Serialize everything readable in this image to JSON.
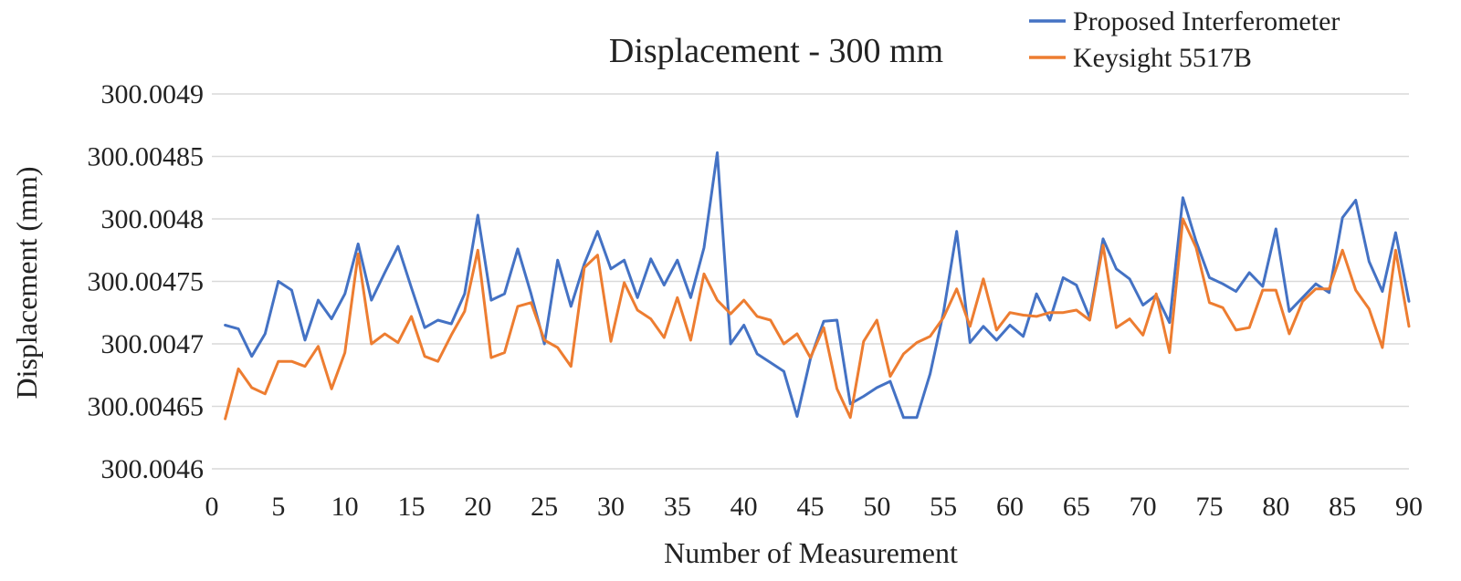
{
  "chart_data": {
    "type": "line",
    "title": "Displacement - 300 mm",
    "xlabel": "Number of Measurement",
    "ylabel": "Displacement (mm)",
    "xlim": [
      0,
      90
    ],
    "ylim": [
      300.0046,
      300.0049
    ],
    "x_ticks": [
      0,
      5,
      10,
      15,
      20,
      25,
      30,
      35,
      40,
      45,
      50,
      55,
      60,
      65,
      70,
      75,
      80,
      85,
      90
    ],
    "x_tick_labels": [
      "0",
      "5",
      "10",
      "15",
      "20",
      "25",
      "30",
      "35",
      "40",
      "45",
      "50",
      "55",
      "60",
      "65",
      "70",
      "75",
      "80",
      "85",
      "90"
    ],
    "y_ticks": [
      300.0046,
      300.00465,
      300.0047,
      300.00475,
      300.0048,
      300.00485,
      300.0049
    ],
    "y_tick_labels": [
      "300.0046",
      "300.00465",
      "300.0047",
      "300.00475",
      "300.0048",
      "300.00485",
      "300.0049"
    ],
    "grid": true,
    "legend_position": "top-right",
    "x": [
      1,
      2,
      3,
      4,
      5,
      6,
      7,
      8,
      9,
      10,
      11,
      12,
      13,
      14,
      15,
      16,
      17,
      18,
      19,
      20,
      21,
      22,
      23,
      24,
      25,
      26,
      27,
      28,
      29,
      30,
      31,
      32,
      33,
      34,
      35,
      36,
      37,
      38,
      39,
      40,
      41,
      42,
      43,
      44,
      45,
      46,
      47,
      48,
      49,
      50,
      51,
      52,
      53,
      54,
      55,
      56,
      57,
      58,
      59,
      60,
      61,
      62,
      63,
      64,
      65,
      66,
      67,
      68,
      69,
      70,
      71,
      72,
      73,
      74,
      75,
      76,
      77,
      78,
      79,
      80,
      81,
      82,
      83,
      84,
      85,
      86,
      87,
      88,
      89,
      90
    ],
    "series": [
      {
        "name": "Proposed Interferometer",
        "color": "#4472C4",
        "values": [
          300.004715,
          300.004712,
          300.00469,
          300.004708,
          300.00475,
          300.004743,
          300.004703,
          300.004735,
          300.00472,
          300.00474,
          300.00478,
          300.004735,
          300.004757,
          300.004778,
          300.004745,
          300.004713,
          300.004719,
          300.004716,
          300.00474,
          300.004803,
          300.004735,
          300.00474,
          300.004776,
          300.00474,
          300.0047,
          300.004767,
          300.00473,
          300.004764,
          300.00479,
          300.00476,
          300.004767,
          300.004737,
          300.004768,
          300.004747,
          300.004767,
          300.004737,
          300.004777,
          300.004853,
          300.0047,
          300.004715,
          300.004692,
          300.004685,
          300.004678,
          300.004642,
          300.004688,
          300.004718,
          300.004719,
          300.004652,
          300.004658,
          300.004665,
          300.00467,
          300.004641,
          300.004641,
          300.004676,
          300.004725,
          300.00479,
          300.004701,
          300.004714,
          300.004703,
          300.004715,
          300.004706,
          300.00474,
          300.004719,
          300.004753,
          300.004747,
          300.004721,
          300.004784,
          300.00476,
          300.004752,
          300.004731,
          300.004739,
          300.004717,
          300.004817,
          300.004782,
          300.004753,
          300.004748,
          300.004742,
          300.004757,
          300.004746,
          300.004792,
          300.004726,
          300.004737,
          300.004748,
          300.004741,
          300.004801,
          300.004815,
          300.004766,
          300.004742,
          300.004789,
          300.004734
        ]
      },
      {
        "name": "Keysight 5517B",
        "color": "#ED7D31",
        "values": [
          300.00464,
          300.00468,
          300.004665,
          300.00466,
          300.004686,
          300.004686,
          300.004682,
          300.004698,
          300.004664,
          300.004693,
          300.004772,
          300.0047,
          300.004708,
          300.004701,
          300.004722,
          300.00469,
          300.004686,
          300.004707,
          300.004726,
          300.004775,
          300.004689,
          300.004693,
          300.00473,
          300.004733,
          300.004703,
          300.004697,
          300.004682,
          300.004761,
          300.004771,
          300.004702,
          300.004749,
          300.004727,
          300.00472,
          300.004705,
          300.004737,
          300.004703,
          300.004756,
          300.004735,
          300.004724,
          300.004735,
          300.004722,
          300.004719,
          300.0047,
          300.004708,
          300.004689,
          300.004713,
          300.004664,
          300.004641,
          300.004702,
          300.004719,
          300.004674,
          300.004692,
          300.004701,
          300.004706,
          300.004721,
          300.004744,
          300.004714,
          300.004752,
          300.004711,
          300.004725,
          300.004723,
          300.004722,
          300.004725,
          300.004725,
          300.004727,
          300.004719,
          300.004779,
          300.004713,
          300.00472,
          300.004707,
          300.00474,
          300.004693,
          300.0048,
          300.004777,
          300.004733,
          300.004729,
          300.004711,
          300.004713,
          300.004743,
          300.004743,
          300.004708,
          300.004734,
          300.004744,
          300.004744,
          300.004775,
          300.004743,
          300.004728,
          300.004697,
          300.004775,
          300.004714
        ]
      }
    ]
  }
}
